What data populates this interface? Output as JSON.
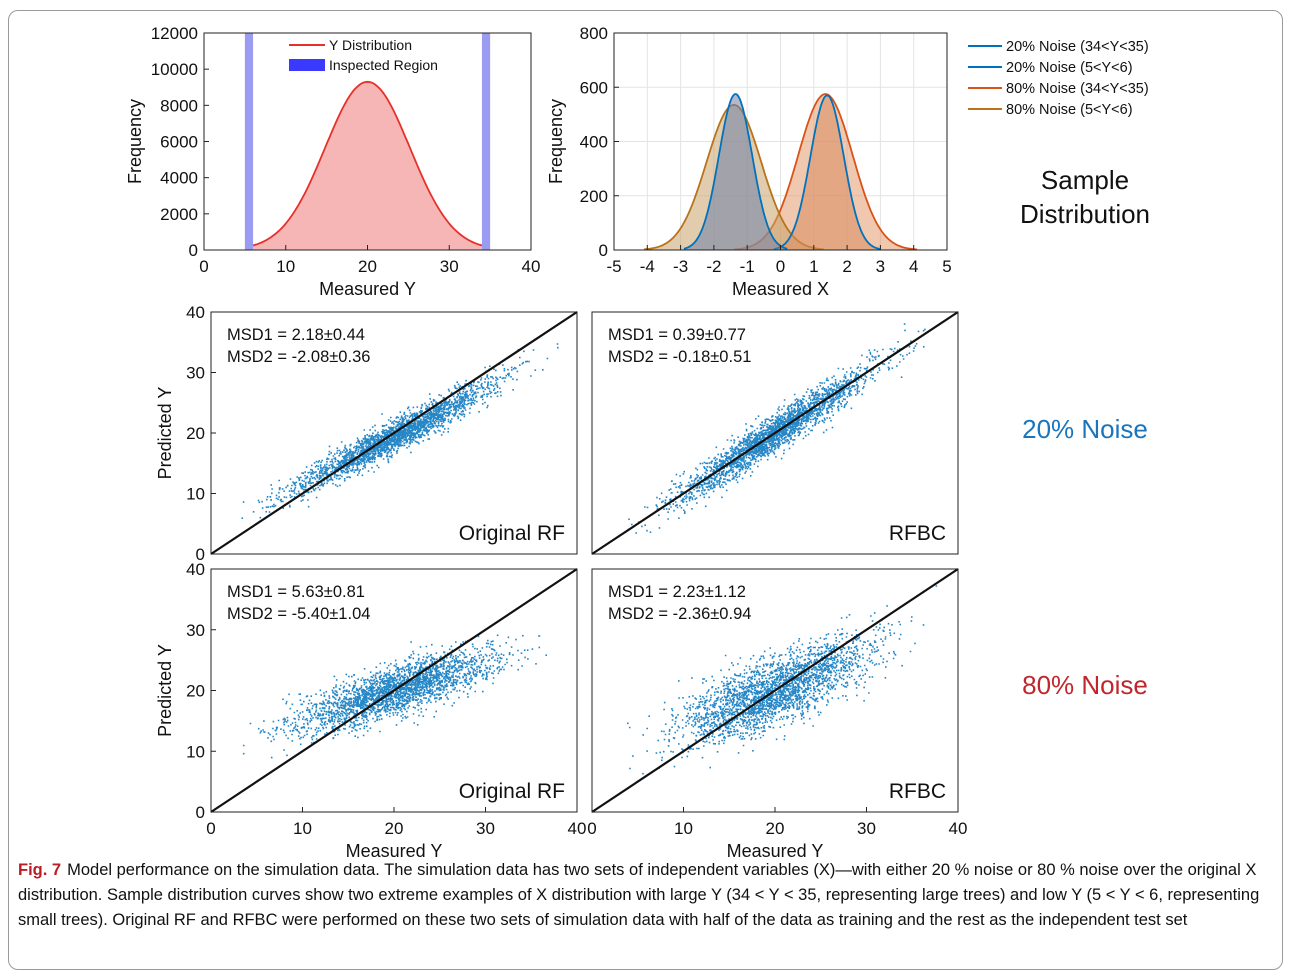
{
  "figure": {
    "caption_label": "Fig. 7",
    "caption_text": "Model performance on the simulation data. The simulation data has two sets of independent variables (X)—with either 20 % noise or 80 % noise over the original X distribution. Sample distribution curves show two extreme examples of X distribution with large Y (34 < Y < 35, representing large trees) and low Y (5 < Y < 6, representing small trees). Original RF and RFBC were performed on these two sets of simulation data with half of the data as training and the rest as the independent test set",
    "row_labels": {
      "sample_line1": "Sample",
      "sample_line2": "Distribution",
      "noise20": "20% Noise",
      "noise80": "80% Noise"
    },
    "colors": {
      "blue": "#0072bd",
      "orange": "#d95319",
      "gold": "#b8731b",
      "red": "#e8302a",
      "inspected": "#8a8af0",
      "caption_label": "#b81e24",
      "label_red": "#c0272d"
    }
  },
  "chart_data": [
    {
      "id": "y-distribution",
      "type": "area",
      "xlabel": "Measured Y",
      "ylabel": "Frequency",
      "xlim": [
        0,
        40
      ],
      "ylim": [
        0,
        12000
      ],
      "xticks": [
        "0",
        "10",
        "20",
        "30",
        "40"
      ],
      "yticks": [
        "0",
        "2000",
        "4000",
        "6000",
        "8000",
        "10000",
        "12000"
      ],
      "legend": [
        "Y Distribution",
        "Inspected Region"
      ],
      "legend_position": "top",
      "curve": {
        "mean": 20,
        "sd": 5.2,
        "peak": 9300,
        "x_range": [
          6,
          34
        ]
      },
      "inspected_regions": [
        [
          5,
          6
        ],
        [
          34,
          35
        ]
      ],
      "grid": false
    },
    {
      "id": "x-distribution",
      "type": "area",
      "xlabel": "Measured X",
      "ylabel": "Frequency",
      "xlim": [
        -5,
        5
      ],
      "ylim": [
        0,
        800
      ],
      "xticks": [
        "-5",
        "-4",
        "-3",
        "-2",
        "-1",
        "0",
        "1",
        "2",
        "3",
        "4",
        "5"
      ],
      "yticks": [
        "0",
        "200",
        "400",
        "600",
        "800"
      ],
      "grid": true,
      "legend_position": "outside right",
      "series": [
        {
          "name": "20% Noise (34<Y<35)",
          "mean": 1.4,
          "sd": 0.5,
          "peak": 570,
          "range": [
            -0.2,
            3.0
          ]
        },
        {
          "name": "20% Noise (5<Y<6)",
          "mean": -1.35,
          "sd": 0.5,
          "peak": 575,
          "range": [
            -2.9,
            0.2
          ]
        },
        {
          "name": "80% Noise (34<Y<35)",
          "mean": 1.35,
          "sd": 0.82,
          "peak": 575,
          "range": [
            -1.4,
            4.1
          ]
        },
        {
          "name": "80% Noise (5<Y<6)",
          "mean": -1.4,
          "sd": 0.82,
          "peak": 535,
          "range": [
            -4.1,
            1.3
          ]
        }
      ]
    },
    {
      "id": "rf-20",
      "type": "scatter",
      "xlim": [
        0,
        40
      ],
      "ylim": [
        0,
        40
      ],
      "yticks": [
        "0",
        "10",
        "20",
        "30",
        "40"
      ],
      "ylabel": "Predicted Y",
      "text_lines": [
        "MSD1 = 2.18±0.44",
        "MSD2 = -2.08±0.36"
      ],
      "panel_label": "Original RF",
      "regression": {
        "slope": 0.8,
        "intercept": 3.6,
        "noise_sd": 1.3
      },
      "identity_line": true
    },
    {
      "id": "rfbc-20",
      "type": "scatter",
      "xlim": [
        0,
        40
      ],
      "ylim": [
        0,
        40
      ],
      "text_lines": [
        "MSD1 = 0.39±0.77",
        "MSD2 = -0.18±0.51"
      ],
      "panel_label": "RFBC",
      "regression": {
        "slope": 1.0,
        "intercept": 0.1,
        "noise_sd": 1.5
      },
      "identity_line": true
    },
    {
      "id": "rf-80",
      "type": "scatter",
      "xlim": [
        0,
        40
      ],
      "ylim": [
        0,
        40
      ],
      "xticks": [
        "0",
        "10",
        "20",
        "30",
        "40"
      ],
      "yticks": [
        "0",
        "10",
        "20",
        "30",
        "40"
      ],
      "xlabel": "Measured Y",
      "ylabel": "Predicted Y",
      "text_lines": [
        "MSD1 = 5.63±0.81",
        "MSD2 = -5.40±1.04"
      ],
      "panel_label": "Original RF",
      "regression": {
        "slope": 0.48,
        "intercept": 10.4,
        "noise_sd": 2.0
      },
      "identity_line": true
    },
    {
      "id": "rfbc-80",
      "type": "scatter",
      "xlim": [
        0,
        40
      ],
      "ylim": [
        0,
        40
      ],
      "xticks": [
        "0",
        "10",
        "20",
        "30",
        "40"
      ],
      "xlabel": "Measured Y",
      "text_lines": [
        "MSD1 = 2.23±1.12",
        "MSD2 = -2.36±0.94"
      ],
      "panel_label": "RFBC",
      "regression": {
        "slope": 0.62,
        "intercept": 7.6,
        "noise_sd": 2.8
      },
      "identity_line": true
    }
  ]
}
